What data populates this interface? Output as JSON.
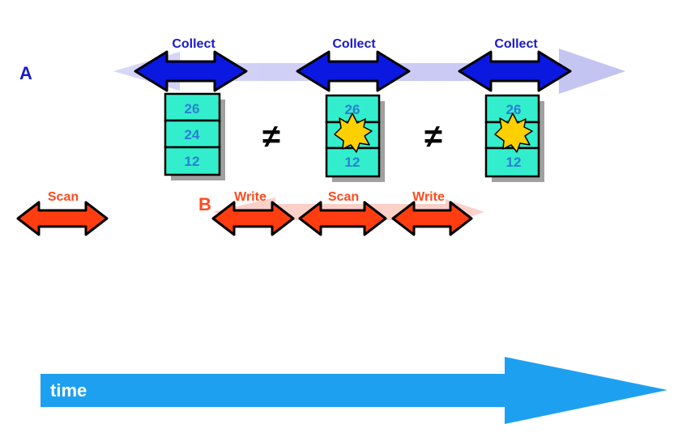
{
  "thread_a": {
    "label": "A",
    "color": "#1a1acc",
    "band_color": "#c9c9f4",
    "arrow_color": "#0a18e0",
    "collects": [
      {
        "label": "Collect"
      },
      {
        "label": "Collect"
      },
      {
        "label": "Collect"
      }
    ]
  },
  "thread_b": {
    "label": "B",
    "color": "#ff4a1e",
    "band_color": "#fbd0c8",
    "arrow_color": "#ff3d10",
    "operations": [
      {
        "label": "Scan"
      },
      {
        "label": "Write"
      },
      {
        "label": "Scan"
      },
      {
        "label": "Write"
      }
    ]
  },
  "snapshots": [
    {
      "cells": [
        "26",
        "24",
        "12"
      ],
      "middle_overwritten": false
    },
    {
      "cells": [
        "26",
        "",
        "12"
      ],
      "middle_overwritten": true
    },
    {
      "cells": [
        "26",
        "",
        "12"
      ],
      "middle_overwritten": true
    }
  ],
  "not_equal_symbols": [
    "≠",
    "≠"
  ],
  "time_axis": {
    "label": "time",
    "color": "#1ea0f0"
  },
  "colors": {
    "cell_fill": "#33eecc",
    "cell_text": "#2a7fd4",
    "star_fill": "#ffd000"
  }
}
